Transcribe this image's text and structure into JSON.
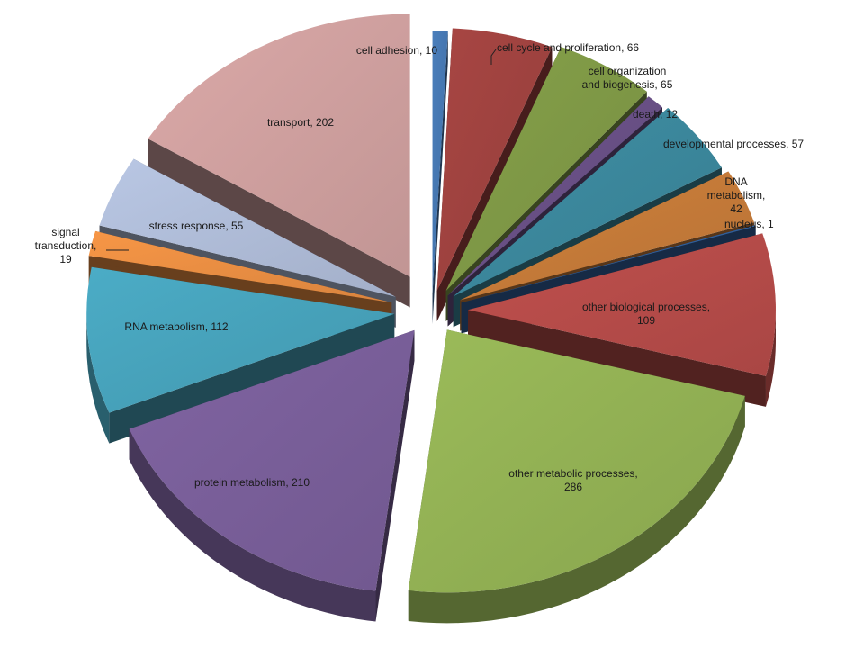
{
  "chart_data": {
    "type": "pie",
    "variant": "3d-exploded",
    "title": "",
    "categories": [
      "cell adhesion",
      "cell cycle and proliferation",
      "cell organization and biogenesis",
      "death",
      "developmental processes",
      "DNA metabolism",
      "nucleus",
      "other biological processes",
      "other metabolic processes",
      "protein metabolism",
      "RNA metabolism",
      "signal transduction",
      "stress response",
      "transport"
    ],
    "values": [
      10,
      66,
      65,
      12,
      57,
      42,
      1,
      109,
      286,
      210,
      112,
      19,
      55,
      202
    ],
    "labels": [
      [
        "cell adhesion, 10"
      ],
      [
        "cell cycle and proliferation, 66"
      ],
      [
        "cell organization",
        "and biogenesis, 65"
      ],
      [
        "death,  12"
      ],
      [
        "developmental  processes, 57"
      ],
      [
        "DNA",
        "metabolism,",
        "42"
      ],
      [
        "nucleus, 1"
      ],
      [
        "other biological processes,",
        "109"
      ],
      [
        "other metabolic processes,",
        "286"
      ],
      [
        "protein metabolism, 210"
      ],
      [
        "RNA  metabolism, 112"
      ],
      [
        "signal",
        "transduction,",
        "19"
      ],
      [
        "stress response, 55"
      ],
      [
        "transport, 202"
      ]
    ],
    "colors": [
      "#4a7ebb",
      "#a84643",
      "#86a14a",
      "#6e548d",
      "#3f8fa5",
      "#d0813c",
      "#3465a4",
      "#c0504d",
      "#9bbb59",
      "#8064a2",
      "#4bacc6",
      "#f79646",
      "#b9c7e4",
      "#dba9a8"
    ],
    "legend": "none"
  }
}
